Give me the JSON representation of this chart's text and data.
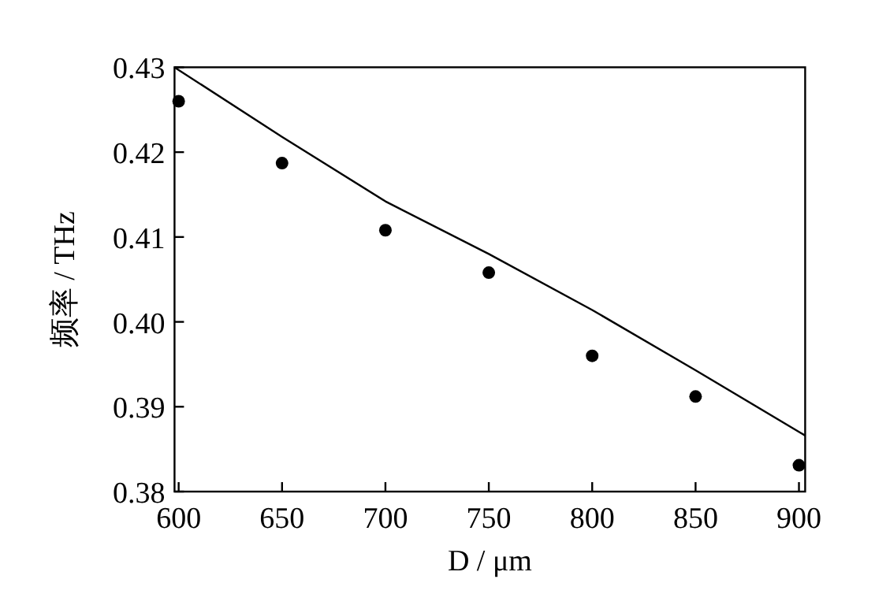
{
  "chart_data": {
    "type": "scatter",
    "xlabel": "D / μm",
    "ylabel": "频率 / THz",
    "xlim": [
      598,
      903
    ],
    "ylim": [
      0.38,
      0.43
    ],
    "xticks": [
      600,
      650,
      700,
      750,
      800,
      850,
      900
    ],
    "yticks": [
      {
        "value": 0.38,
        "label": "0.38"
      },
      {
        "value": 0.39,
        "label": "0.39"
      },
      {
        "value": 0.4,
        "label": "0.40"
      },
      {
        "value": 0.41,
        "label": "0.41"
      },
      {
        "value": 0.42,
        "label": "0.42"
      },
      {
        "value": 0.43,
        "label": "0.43"
      }
    ],
    "grid": false,
    "series": [
      {
        "type": "line",
        "color": "#000000",
        "marker": "none",
        "line_style": "solid",
        "x": [
          598,
          650,
          700,
          750,
          800,
          850,
          903
        ],
        "values": [
          0.43,
          0.4218,
          0.4142,
          0.408,
          0.4014,
          0.3943,
          0.3866
        ]
      },
      {
        "color": "#000000",
        "marker": "circle",
        "x": [
          600,
          650,
          700,
          750,
          800,
          850,
          900
        ],
        "values": [
          0.426,
          0.4187,
          0.4108,
          0.4058,
          0.396,
          0.3912,
          0.3831
        ]
      }
    ]
  }
}
